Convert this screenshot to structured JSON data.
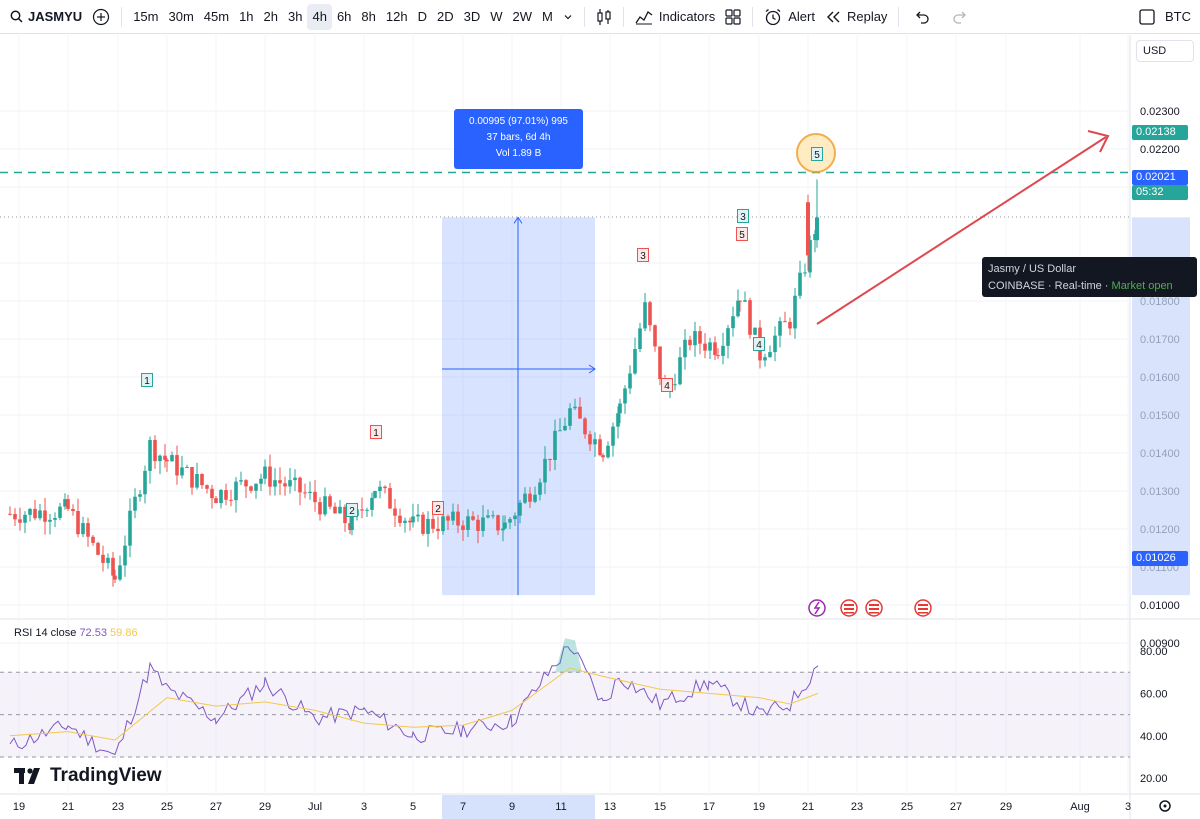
{
  "toolbar": {
    "symbol": "JASMYU",
    "intervals": [
      "15m",
      "30m",
      "45m",
      "1h",
      "2h",
      "3h",
      "4h",
      "6h",
      "8h",
      "12h",
      "D",
      "2D",
      "3D",
      "W",
      "2W",
      "M"
    ],
    "active_interval": "4h",
    "indicators_label": "Indicators",
    "alert_label": "Alert",
    "replay_label": "Replay",
    "compare_label": "BTC"
  },
  "price_axis": {
    "currency": "USD",
    "ticks": [
      "0.02300",
      "0.02200",
      "0.02100",
      "0.01900",
      "0.01800",
      "0.01700",
      "0.01600",
      "0.01500",
      "0.01400",
      "0.01300",
      "0.01200",
      "0.01100",
      "0.01000",
      "0.00900"
    ],
    "target_tag": "0.02138",
    "last_price_tag": "0.02021",
    "countdown_tag": "05:32",
    "range_low_tag": "0.01026",
    "colors": {
      "target": "#26a69a",
      "last": "#2962ff",
      "range": "#2962ff"
    }
  },
  "time_axis": {
    "labels": [
      "19",
      "21",
      "23",
      "25",
      "27",
      "29",
      "Jul",
      "3",
      "5",
      "7",
      "9",
      "11",
      "13",
      "15",
      "17",
      "19",
      "21",
      "23",
      "25",
      "27",
      "29",
      "Aug",
      "3"
    ]
  },
  "tooltip": {
    "title": "Jasmy / US Dollar",
    "exchange": "COINBASE",
    "feed": "Real-time",
    "status": "Market open"
  },
  "measure": {
    "line1": "0.00995 (97.01%) 995",
    "line2": "37 bars, 6d 4h",
    "line3": "Vol 1.89 B"
  },
  "rsi": {
    "label": "RSI 14 close",
    "value": "72.53",
    "ma_value": "59.86",
    "ticks": [
      "80.00",
      "60.00",
      "40.00",
      "20.00"
    ],
    "line_color": "#7e57c2",
    "ma_color": "#f2c94c"
  },
  "brand": "TradingView",
  "waves": {
    "teal": [
      "1",
      "2",
      "3",
      "4",
      "5"
    ],
    "red": [
      "1",
      "2",
      "3",
      "4",
      "5"
    ]
  },
  "chart_data": {
    "type": "candlestick",
    "title": "",
    "ylim": [
      0.0087,
      0.0235
    ],
    "ylabel": "USD",
    "grid": true,
    "close_path": [
      {
        "x": "19",
        "y": 0.0124
      },
      {
        "x": "21",
        "y": 0.0125
      },
      {
        "x": "23",
        "y": 0.0107
      },
      {
        "x": "24",
        "y": 0.0142
      },
      {
        "x": "25",
        "y": 0.0138
      },
      {
        "x": "27",
        "y": 0.0129
      },
      {
        "x": "29",
        "y": 0.0134
      },
      {
        "x": "Jul",
        "y": 0.013
      },
      {
        "x": "2",
        "y": 0.0121
      },
      {
        "x": "3",
        "y": 0.0131
      },
      {
        "x": "5",
        "y": 0.0121
      },
      {
        "x": "7",
        "y": 0.0122
      },
      {
        "x": "9",
        "y": 0.0121
      },
      {
        "x": "10",
        "y": 0.0132
      },
      {
        "x": "11",
        "y": 0.0151
      },
      {
        "x": "12",
        "y": 0.0141
      },
      {
        "x": "13",
        "y": 0.0152
      },
      {
        "x": "14",
        "y": 0.0178
      },
      {
        "x": "15",
        "y": 0.0155
      },
      {
        "x": "16",
        "y": 0.017
      },
      {
        "x": "17",
        "y": 0.0168
      },
      {
        "x": "18",
        "y": 0.0182
      },
      {
        "x": "19",
        "y": 0.0166
      },
      {
        "x": "20",
        "y": 0.0175
      },
      {
        "x": "21",
        "y": 0.0202
      }
    ],
    "target_level": 0.02138,
    "last_price": 0.02021,
    "measured_range": {
      "from": 0.01026,
      "to": 0.02021,
      "change": 0.00995,
      "percent": 97.01,
      "bars": 37
    },
    "rsi_series": [
      {
        "x": "19",
        "y": 35
      },
      {
        "x": "21",
        "y": 45
      },
      {
        "x": "23",
        "y": 30
      },
      {
        "x": "24",
        "y": 72
      },
      {
        "x": "25",
        "y": 62
      },
      {
        "x": "27",
        "y": 48
      },
      {
        "x": "29",
        "y": 65
      },
      {
        "x": "Jul",
        "y": 48
      },
      {
        "x": "3",
        "y": 52
      },
      {
        "x": "5",
        "y": 40
      },
      {
        "x": "7",
        "y": 43
      },
      {
        "x": "9",
        "y": 47
      },
      {
        "x": "11",
        "y": 83
      },
      {
        "x": "12",
        "y": 55
      },
      {
        "x": "13",
        "y": 68
      },
      {
        "x": "15",
        "y": 55
      },
      {
        "x": "17",
        "y": 65
      },
      {
        "x": "19",
        "y": 50
      },
      {
        "x": "20",
        "y": 55
      },
      {
        "x": "21",
        "y": 73
      }
    ]
  }
}
